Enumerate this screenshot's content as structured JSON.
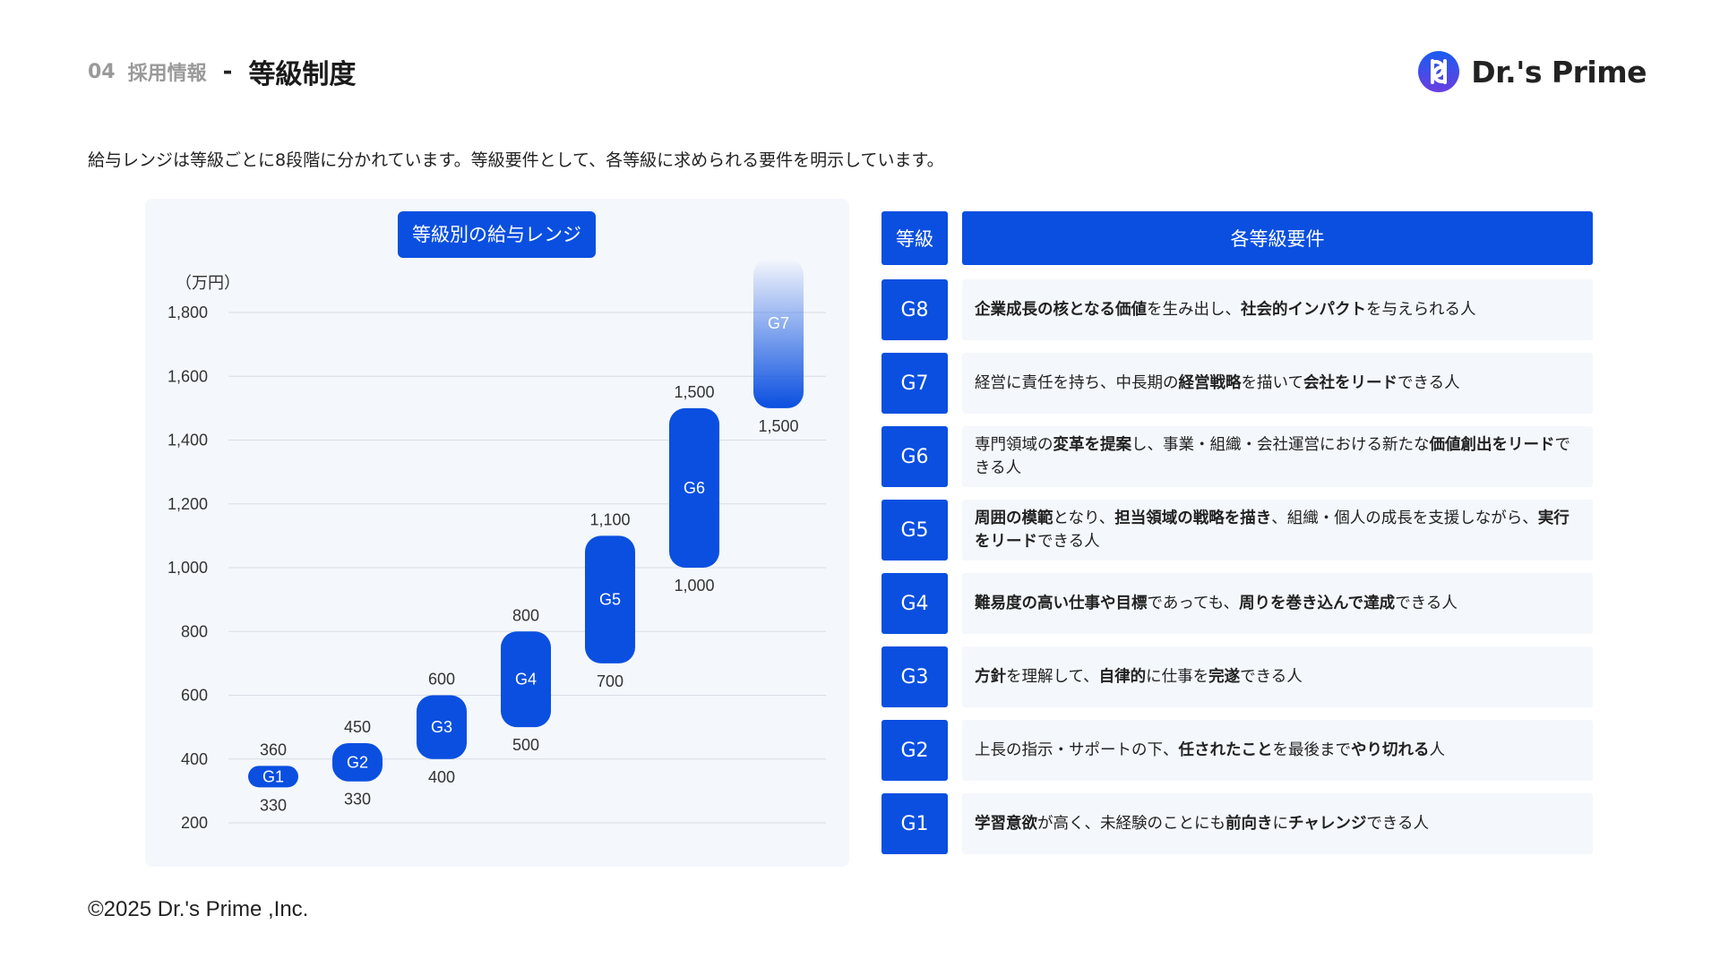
{
  "header": {
    "section_number": "04",
    "section_name": "採用情報",
    "separator": "-",
    "title": "等級制度"
  },
  "logo": {
    "text": "Dr.'s Prime",
    "icon": "dp-logo-mark"
  },
  "intro": "給与レンジは等級ごとに8段階に分かれています。等級要件として、各等級に求められる要件を明示しています。",
  "chart_data": {
    "type": "floating-bar",
    "title": "等級別の給与レンジ",
    "unit_label": "（万円）",
    "ylim": [
      200,
      1800
    ],
    "yticks": [
      200,
      400,
      600,
      800,
      1000,
      1200,
      1400,
      1600,
      1800
    ],
    "ytick_labels": [
      "200",
      "400",
      "600",
      "800",
      "1,000",
      "1,200",
      "1,400",
      "1,600",
      "1,800"
    ],
    "grid": true,
    "bar_color": "#0a4fe0",
    "bars": [
      {
        "grade": "G1",
        "min": 330,
        "max": 360,
        "min_label": "330",
        "max_label": "360"
      },
      {
        "grade": "G2",
        "min": 330,
        "max": 450,
        "min_label": "330",
        "max_label": "450"
      },
      {
        "grade": "G3",
        "min": 400,
        "max": 600,
        "min_label": "400",
        "max_label": "600"
      },
      {
        "grade": "G4",
        "min": 500,
        "max": 800,
        "min_label": "500",
        "max_label": "800"
      },
      {
        "grade": "G5",
        "min": 700,
        "max": 1100,
        "min_label": "700",
        "max_label": "1,100"
      },
      {
        "grade": "G6",
        "min": 1000,
        "max": 1500,
        "min_label": "1,000",
        "max_label": "1,500"
      },
      {
        "grade": "G7",
        "min": 1500,
        "max": null,
        "min_label": "1,500",
        "max_label": "",
        "open_ended": true
      }
    ]
  },
  "requirements": {
    "header_grade": "等級",
    "header_desc": "各等級要件",
    "rows": [
      {
        "grade": "G8",
        "segments": [
          [
            "企業成長の核となる価値",
            true
          ],
          [
            "を生み出し、",
            false
          ],
          [
            "社会的インパクト",
            true
          ],
          [
            "を与えられる人",
            false
          ]
        ]
      },
      {
        "grade": "G7",
        "segments": [
          [
            "経営に責任を持ち、中長期の",
            false
          ],
          [
            "経営戦略",
            true
          ],
          [
            "を描いて",
            false
          ],
          [
            "会社をリード",
            true
          ],
          [
            "できる人",
            false
          ]
        ]
      },
      {
        "grade": "G6",
        "segments": [
          [
            "専門領域の",
            false
          ],
          [
            "変革を提案",
            true
          ],
          [
            "し、事業・組織・会社運営における新たな",
            false
          ],
          [
            "価値創出をリード",
            true
          ],
          [
            "できる人",
            false
          ]
        ]
      },
      {
        "grade": "G5",
        "segments": [
          [
            "周囲の模範",
            true
          ],
          [
            "となり、",
            false
          ],
          [
            "担当領域の戦略を描き",
            true
          ],
          [
            "、組織・個人の成長を支援しながら、",
            false
          ],
          [
            "実行をリード",
            true
          ],
          [
            "できる人",
            false
          ]
        ]
      },
      {
        "grade": "G4",
        "segments": [
          [
            "難易度の高い仕事や目標",
            true
          ],
          [
            "であっても、",
            false
          ],
          [
            "周りを巻き込んで達成",
            true
          ],
          [
            "できる人",
            false
          ]
        ]
      },
      {
        "grade": "G3",
        "segments": [
          [
            "方針",
            true
          ],
          [
            "を理解して、",
            false
          ],
          [
            "自律的",
            true
          ],
          [
            "に仕事を",
            false
          ],
          [
            "完遂",
            true
          ],
          [
            "できる人",
            false
          ]
        ]
      },
      {
        "grade": "G2",
        "segments": [
          [
            "上長の指示・サポートの下、",
            false
          ],
          [
            "任されたこと",
            true
          ],
          [
            "を最後まで",
            false
          ],
          [
            "やり切れる",
            true
          ],
          [
            "人",
            false
          ]
        ]
      },
      {
        "grade": "G1",
        "segments": [
          [
            "学習意欲",
            true
          ],
          [
            "が高く、未経験のことにも",
            false
          ],
          [
            "前向き",
            true
          ],
          [
            "に",
            false
          ],
          [
            "チャレンジ",
            true
          ],
          [
            "できる人",
            false
          ]
        ]
      }
    ]
  },
  "footer": "©2025 Dr.'s Prime ,Inc."
}
